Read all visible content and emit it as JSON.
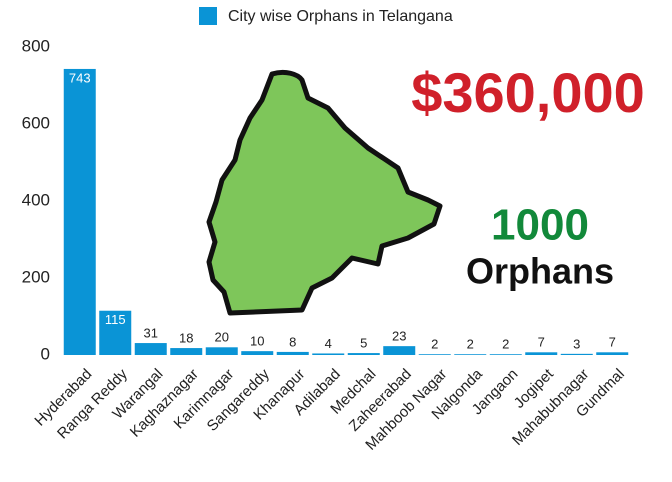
{
  "chart_data": {
    "type": "bar",
    "legend": "City wise Orphans in Telangana",
    "color": "#0a94d6",
    "categories": [
      "Hyderabad",
      "Ranga Reddy",
      "Warangal",
      "Kaghaznagar",
      "Karimnagar",
      "Sangareddy",
      "Khanapur",
      "Adilabad",
      "Medchal",
      "Zaheerabad",
      "Mahboob Nagar",
      "Nalgonda",
      "Jangaon",
      "Jogipet",
      "Mahabubnagar",
      "Gundmal"
    ],
    "values": [
      743,
      115,
      31,
      18,
      20,
      10,
      8,
      4,
      5,
      23,
      2,
      2,
      2,
      7,
      3,
      7
    ],
    "ylim": [
      0,
      800
    ],
    "yticks": [
      0,
      200,
      400,
      600,
      800
    ],
    "annotations": [
      "$360,000",
      "1000",
      "Orphans"
    ]
  }
}
